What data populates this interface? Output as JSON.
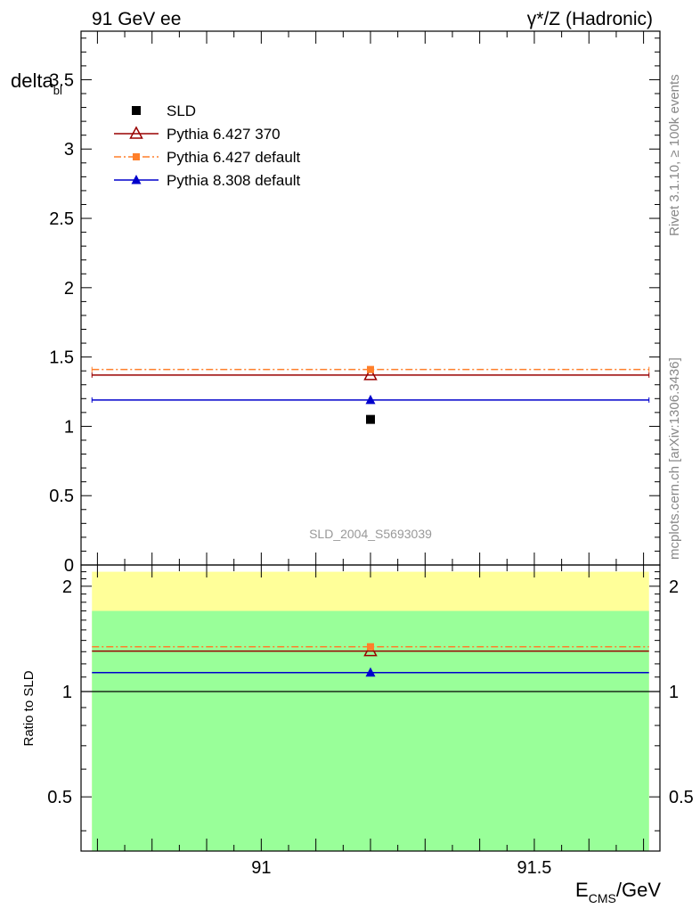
{
  "header": {
    "left_label": "91 GeV ee",
    "right_label": "γ*/Z (Hadronic)"
  },
  "side_labels": {
    "rivet": "Rivet 3.1.10, ≥ 100k events",
    "mcplots": "mcplots.cern.ch [arXiv:1306.3436]"
  },
  "watermark": "SLD_2004_S5693039",
  "axes": {
    "ylabel_main": "delta",
    "ylabel_main_sub": "bl",
    "ylabel_ratio": "Ratio to SLD",
    "xlabel_main": "E",
    "xlabel_sub": "CMS",
    "xlabel_unit": "/GeV"
  },
  "colors": {
    "sld": "#000000",
    "py6_370": "#990000",
    "py6_default": "#ff7f2a",
    "py8_default": "#0000cc",
    "band_yellow": "#ffff99",
    "band_green": "#99ff99"
  },
  "chart_data": [
    {
      "type": "scatter",
      "panel": "main",
      "xlim": [
        90.67,
        91.73
      ],
      "ylim": [
        0,
        3.85
      ],
      "x_ticks": [
        91,
        91.5
      ],
      "x_tick_labels": [
        "91",
        "91.5"
      ],
      "y_ticks": [
        0,
        0.5,
        1,
        1.5,
        2,
        2.5,
        3,
        3.5
      ],
      "y_tick_labels": [
        "0",
        "0.5",
        "1",
        "1.5",
        "2",
        "2.5",
        "3",
        "3.5"
      ],
      "legend_position": "top-left",
      "x_range": [
        90.69,
        91.71
      ],
      "series": [
        {
          "name": "SLD",
          "key": "sld",
          "marker": "square",
          "x": [
            91.2
          ],
          "y": [
            1.05
          ]
        },
        {
          "name": "Pythia 6.427 370",
          "key": "py6_370",
          "marker": "triangle-open",
          "line": "solid",
          "x": [
            91.2
          ],
          "y": [
            1.37
          ]
        },
        {
          "name": "Pythia 6.427 default",
          "key": "py6_default",
          "marker": "square-small",
          "line": "dashdot",
          "x": [
            91.2
          ],
          "y": [
            1.41
          ]
        },
        {
          "name": "Pythia 8.308 default",
          "key": "py8_default",
          "marker": "triangle",
          "line": "solid",
          "x": [
            91.2
          ],
          "y": [
            1.19
          ]
        }
      ]
    },
    {
      "type": "scatter",
      "panel": "ratio",
      "log_y": true,
      "ylim": [
        0.35,
        2.3
      ],
      "y_ticks": [
        0.5,
        1,
        2
      ],
      "y_tick_labels": [
        "0.5",
        "1",
        "2"
      ],
      "bands": [
        {
          "key": "band_yellow",
          "y_low": 0.33,
          "y_high": 2.2
        },
        {
          "key": "band_green",
          "y_low": 0.33,
          "y_high": 1.7
        }
      ],
      "reference": 1,
      "series": [
        {
          "key": "py6_370",
          "x": [
            91.2
          ],
          "y": [
            1.305
          ]
        },
        {
          "key": "py6_default",
          "x": [
            91.2
          ],
          "y": [
            1.343
          ]
        },
        {
          "key": "py8_default",
          "x": [
            91.2
          ],
          "y": [
            1.133
          ]
        }
      ]
    }
  ]
}
